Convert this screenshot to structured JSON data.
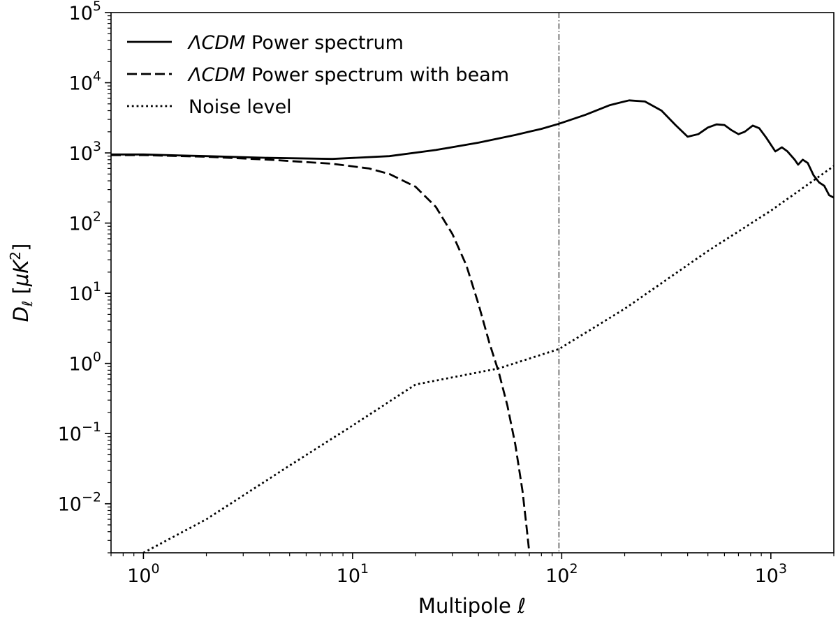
{
  "chart_data": {
    "type": "line",
    "title": "",
    "xscale": "log",
    "yscale": "log",
    "xlim": [
      0.7,
      2000
    ],
    "ylim": [
      0.002,
      100000
    ],
    "xlabel": {
      "text": "Multipole ",
      "symbol": "ℓ"
    },
    "ylabel": {
      "base": "D",
      "sub": "ℓ",
      "mid": " [",
      "mu": "μ",
      "unit": "K",
      "exp": "2",
      "close": "]"
    },
    "x_ticks": [
      {
        "value": 1,
        "base": "10",
        "exp": "0"
      },
      {
        "value": 10,
        "base": "10",
        "exp": "1"
      },
      {
        "value": 100,
        "base": "10",
        "exp": "2"
      },
      {
        "value": 1000,
        "base": "10",
        "exp": "3"
      }
    ],
    "y_ticks": [
      {
        "value": 0.01,
        "base": "10",
        "exp": "−2"
      },
      {
        "value": 0.1,
        "base": "10",
        "exp": "−1"
      },
      {
        "value": 1,
        "base": "10",
        "exp": "0"
      },
      {
        "value": 10,
        "base": "10",
        "exp": "1"
      },
      {
        "value": 100,
        "base": "10",
        "exp": "2"
      },
      {
        "value": 1000,
        "base": "10",
        "exp": "3"
      },
      {
        "value": 10000,
        "base": "10",
        "exp": "4"
      },
      {
        "value": 100000,
        "base": "10",
        "exp": "5"
      }
    ],
    "vertical_line": {
      "x": 97,
      "style": "dashdot"
    },
    "legend": {
      "location": "upper-left",
      "frame": false
    },
    "series": [
      {
        "name": "ΛCDM Power spectrum",
        "label_italic": "ΛCDM",
        "label_rest": " Power spectrum",
        "style": "solid",
        "points": [
          [
            0.7,
            950
          ],
          [
            1,
            950
          ],
          [
            2,
            900
          ],
          [
            4,
            850
          ],
          [
            8,
            820
          ],
          [
            15,
            900
          ],
          [
            25,
            1100
          ],
          [
            40,
            1400
          ],
          [
            60,
            1800
          ],
          [
            80,
            2200
          ],
          [
            97,
            2600
          ],
          [
            130,
            3500
          ],
          [
            170,
            4800
          ],
          [
            210,
            5600
          ],
          [
            250,
            5400
          ],
          [
            300,
            4000
          ],
          [
            350,
            2500
          ],
          [
            400,
            1700
          ],
          [
            450,
            1850
          ],
          [
            500,
            2300
          ],
          [
            550,
            2550
          ],
          [
            600,
            2500
          ],
          [
            650,
            2100
          ],
          [
            700,
            1850
          ],
          [
            750,
            2000
          ],
          [
            820,
            2450
          ],
          [
            880,
            2250
          ],
          [
            950,
            1650
          ],
          [
            1050,
            1050
          ],
          [
            1130,
            1200
          ],
          [
            1200,
            1050
          ],
          [
            1300,
            800
          ],
          [
            1350,
            680
          ],
          [
            1420,
            800
          ],
          [
            1500,
            720
          ],
          [
            1600,
            480
          ],
          [
            1700,
            380
          ],
          [
            1800,
            340
          ],
          [
            1900,
            250
          ],
          [
            2000,
            230
          ]
        ]
      },
      {
        "name": "ΛCDM Power spectrum with beam",
        "label_italic": "ΛCDM",
        "label_rest": " Power spectrum with beam",
        "style": "dashed",
        "points": [
          [
            0.7,
            930
          ],
          [
            1,
            930
          ],
          [
            2,
            880
          ],
          [
            4,
            800
          ],
          [
            8,
            700
          ],
          [
            12,
            600
          ],
          [
            15,
            500
          ],
          [
            20,
            330
          ],
          [
            25,
            170
          ],
          [
            30,
            70
          ],
          [
            35,
            25
          ],
          [
            40,
            7
          ],
          [
            45,
            2
          ],
          [
            50,
            0.75
          ],
          [
            55,
            0.25
          ],
          [
            60,
            0.07
          ],
          [
            65,
            0.015
          ],
          [
            68,
            0.0045
          ],
          [
            70,
            0.002
          ]
        ]
      },
      {
        "name": "Noise level",
        "label_italic": "",
        "label_rest": "Noise level",
        "style": "dotted",
        "points": [
          [
            1,
            0.002
          ],
          [
            2,
            0.006
          ],
          [
            5,
            0.035
          ],
          [
            10,
            0.13
          ],
          [
            20,
            0.5
          ],
          [
            50,
            0.85
          ],
          [
            97,
            1.6
          ],
          [
            200,
            6
          ],
          [
            500,
            40
          ],
          [
            1000,
            150
          ],
          [
            2000,
            650
          ]
        ]
      }
    ]
  }
}
